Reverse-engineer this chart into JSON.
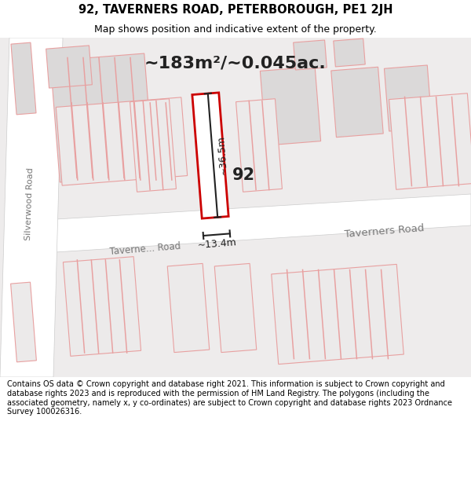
{
  "title": "92, TAVERNERS ROAD, PETERBOROUGH, PE1 2JH",
  "subtitle": "Map shows position and indicative extent of the property.",
  "area_text": "~183m²/~0.045ac.",
  "property_number": "92",
  "dim_vertical": "~36.5m",
  "dim_horizontal": "~13.4m",
  "road_label_taverners_left": "Taverne... Road",
  "road_label_taverners_right": "Taverners Road",
  "road_label_silverwood": "Silverwood Road",
  "footer_text": "Contains OS data © Crown copyright and database right 2021. This information is subject to Crown copyright and database rights 2023 and is reproduced with the permission of HM Land Registry. The polygons (including the associated geometry, namely x, y co-ordinates) are subject to Crown copyright and database rights 2023 Ordnance Survey 100026316.",
  "bg_color": "#eeecec",
  "road_fill": "#ffffff",
  "road_edge": "#cccccc",
  "bldg_fill_dark": "#dbd9d9",
  "bldg_fill_light": "#eceaea",
  "bldg_edge_pink": "#e8a0a0",
  "prop_fill": "#ffffff",
  "prop_edge": "#cc0000",
  "dim_color": "#222222",
  "text_dark": "#222222",
  "text_road": "#777777",
  "footer_fs": 7.0,
  "title_fs": 10.5,
  "subtitle_fs": 9.0,
  "area_fs": 16,
  "prop_num_fs": 15
}
